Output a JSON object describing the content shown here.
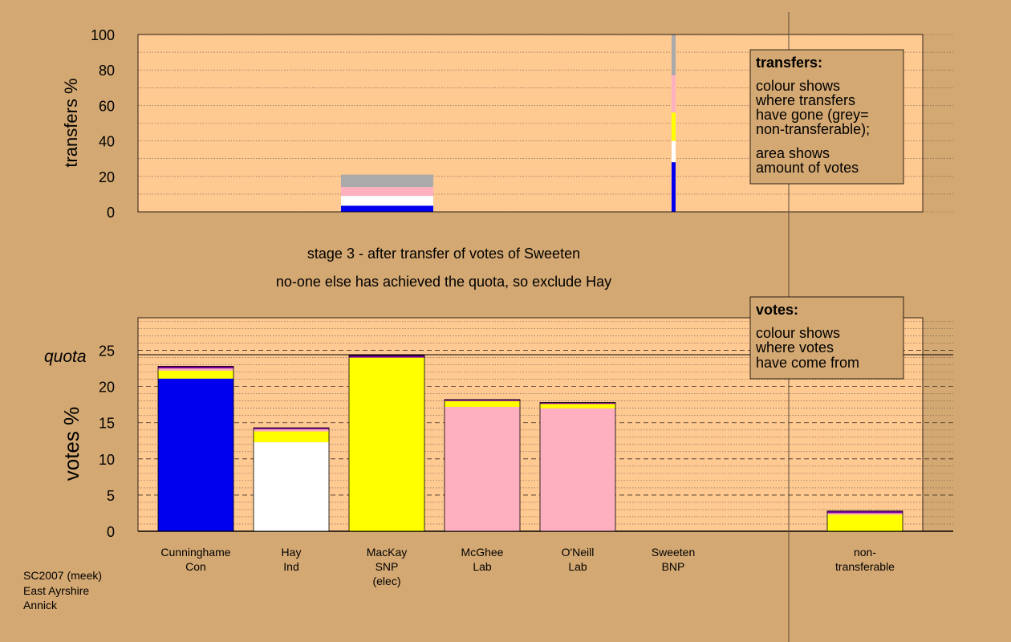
{
  "colors": {
    "page_bg": "#D4A872",
    "plot_bg": "#FFC992",
    "Con": "#0000EE",
    "Ind": "#FFFFFF",
    "SNP": "#FFFF00",
    "Lab": "#FFB0C0",
    "BNP": "#7B0099",
    "nt": "#AAAAAA"
  },
  "chart_data": [
    {
      "type": "bar",
      "id": "transfers",
      "ylabel": "transfers %",
      "ylim": [
        0,
        100
      ],
      "ticks": [
        "0",
        "20",
        "40",
        "60",
        "80",
        "100"
      ],
      "grid": "dotted every 10",
      "legend": {
        "title": "transfers:",
        "lines1": [
          "colour shows",
          "where transfers",
          "have gone (grey=",
          "non-transferable);"
        ],
        "lines2": [
          "area shows",
          "amount of votes"
        ]
      },
      "bars": [
        {
          "label": "Sweeten BNP (transfer bar)",
          "height_pct": 21,
          "segments": [
            {
              "to": "Con",
              "value": 3.5
            },
            {
              "to": "Ind",
              "value": 5.5
            },
            {
              "to": "Lab",
              "value": 5
            },
            {
              "to": "nt",
              "value": 7
            }
          ]
        },
        {
          "label": "transfer breakdown",
          "segments": [
            {
              "to": "Con",
              "value": 28
            },
            {
              "to": "Ind",
              "value": 12
            },
            {
              "to": "SNP",
              "value": 16
            },
            {
              "to": "Lab",
              "value": 21
            },
            {
              "to": "nt",
              "value": 23
            }
          ]
        }
      ]
    },
    {
      "type": "bar",
      "id": "votes",
      "ylabel": "votes %",
      "ylim": [
        0,
        29.5
      ],
      "ticks": [
        "0",
        "5",
        "10",
        "15",
        "20",
        "25"
      ],
      "quota": 24.4,
      "quota_label": "quota",
      "grid": "dashed every 5, dotted every 1",
      "legend": {
        "title": "votes:",
        "lines": [
          "colour shows",
          "where votes",
          "have come from"
        ]
      },
      "categories": [
        {
          "name": "Cunninghame",
          "party": "Con",
          "note": ""
        },
        {
          "name": "Hay",
          "party": "Ind",
          "note": ""
        },
        {
          "name": "MacKay",
          "party": "SNP",
          "note": "(elec)"
        },
        {
          "name": "McGhee",
          "party": "Lab",
          "note": ""
        },
        {
          "name": "O'Neill",
          "party": "Lab",
          "note": ""
        },
        {
          "name": "Sweeten",
          "party": "BNP",
          "note": ""
        },
        {
          "name": "non-",
          "party": "transferable",
          "note": ""
        }
      ],
      "bars": [
        {
          "segments": [
            {
              "from": "Con",
              "value": 21.1
            },
            {
              "from": "SNP",
              "value": 1.1
            },
            {
              "from": "Lab",
              "value": 0.3
            },
            {
              "from": "BNP",
              "value": 0.3
            }
          ]
        },
        {
          "segments": [
            {
              "from": "Ind",
              "value": 12.3
            },
            {
              "from": "SNP",
              "value": 1.5
            },
            {
              "from": "Lab",
              "value": 0.3
            },
            {
              "from": "BNP",
              "value": 0.2
            }
          ]
        },
        {
          "segments": [
            {
              "from": "SNP",
              "value": 24.0
            },
            {
              "from": "BNP",
              "value": 0.3
            }
          ]
        },
        {
          "segments": [
            {
              "from": "Lab",
              "value": 17.2
            },
            {
              "from": "SNP",
              "value": 0.8
            },
            {
              "from": "BNP",
              "value": 0.2
            }
          ]
        },
        {
          "segments": [
            {
              "from": "Lab",
              "value": 17.0
            },
            {
              "from": "SNP",
              "value": 0.6
            },
            {
              "from": "BNP",
              "value": 0.2
            }
          ]
        },
        {
          "segments": []
        },
        {
          "segments": [
            {
              "from": "SNP",
              "value": 2.3
            },
            {
              "from": "Lab",
              "value": 0.2
            },
            {
              "from": "BNP",
              "value": 0.3
            }
          ]
        }
      ]
    }
  ],
  "stage_text": {
    "line1": "stage 3 - after transfer of votes of Sweeten",
    "line2": "no-one else has achieved the quota, so exclude Hay"
  },
  "footer": {
    "lines": [
      "SC2007 (meek)",
      "East Ayrshire",
      "Annick"
    ]
  }
}
